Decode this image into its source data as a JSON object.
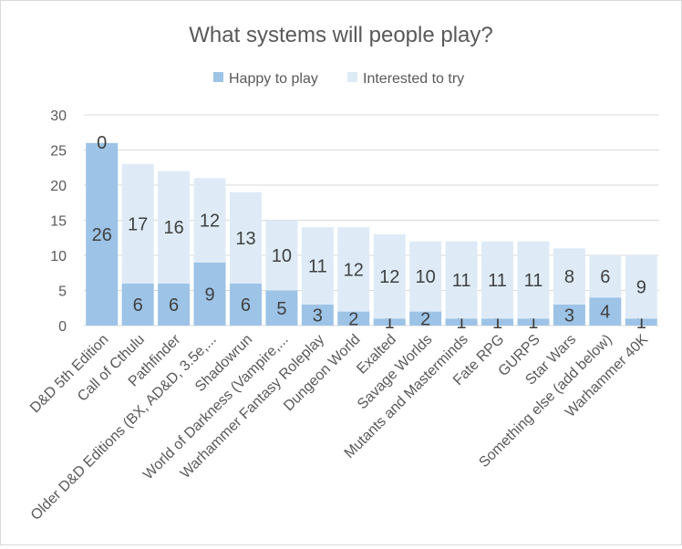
{
  "chart_data": {
    "type": "bar",
    "stacked": true,
    "title": "What systems will people play?",
    "xlabel": "",
    "ylabel": "",
    "ylim": [
      0,
      30
    ],
    "yticks": [
      0,
      5,
      10,
      15,
      20,
      25,
      30
    ],
    "grid": true,
    "legend_position": "top",
    "categories": [
      "D&D 5th Edition",
      "Call of Cthulu",
      "Pathfinder",
      "Older D&D Editions (BX, AD&D, 3.5e,...",
      "Shadowrun",
      "World of Darkness (Vampire,...",
      "Warhammer Fantasy Roleplay",
      "Dungeon World",
      "Exalted",
      "Savage Worlds",
      "Mutants and Masterminds",
      "Fate RPG",
      "GURPS",
      "Star Wars",
      "Something else (add below)",
      "Warhammer 40K"
    ],
    "series": [
      {
        "name": "Happy to play",
        "color": "#9dc3e6",
        "values": [
          26,
          6,
          6,
          9,
          6,
          5,
          3,
          2,
          1,
          2,
          1,
          1,
          1,
          3,
          4,
          1
        ]
      },
      {
        "name": "Interested to try",
        "color": "#deebf7",
        "values": [
          0,
          17,
          16,
          12,
          13,
          10,
          11,
          12,
          12,
          10,
          11,
          11,
          11,
          8,
          6,
          9
        ]
      }
    ]
  }
}
